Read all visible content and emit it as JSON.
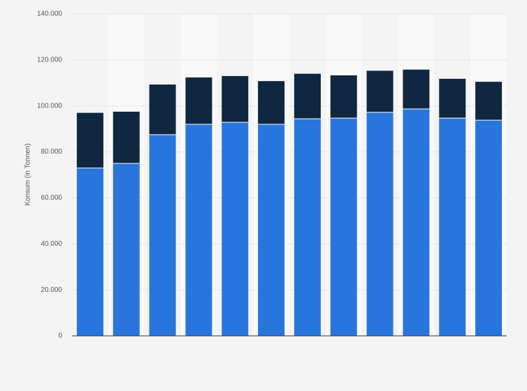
{
  "chart_data": {
    "type": "stacked-bar",
    "y_label": "Konsum (in Tonnen)",
    "categories": [
      null,
      null,
      null,
      null,
      null,
      null,
      null,
      null,
      null,
      null,
      null,
      null
    ],
    "series": [
      {
        "color": "#2876dd",
        "values": [
          73000,
          75000,
          87500,
          92000,
          92900,
          92000,
          94400,
          94700,
          97200,
          98700,
          94700,
          93800
        ]
      },
      {
        "color": "#0f2740",
        "values": [
          24000,
          22500,
          21800,
          20400,
          20100,
          18800,
          19600,
          18600,
          18100,
          17100,
          17100,
          16700
        ]
      }
    ],
    "ylim": [
      0,
      140000
    ],
    "yticks": [
      0,
      {
        "value": 20000,
        "label": "20.000"
      },
      {
        "value": 40000,
        "label": "40.000"
      },
      {
        "value": 60000,
        "label": "60.000"
      },
      {
        "value": 80000,
        "label": "80.000"
      },
      {
        "value": 100000,
        "label": "100.000"
      },
      {
        "value": 120000,
        "label": "120.000"
      },
      {
        "value": 140000,
        "label": "140.000"
      }
    ],
    "grid": true
  }
}
